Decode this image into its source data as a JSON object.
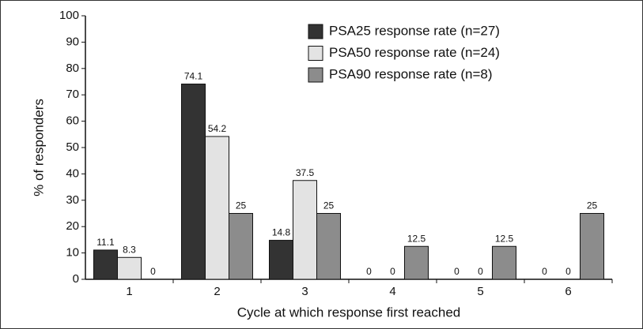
{
  "chart_data": {
    "type": "bar",
    "x_label": "Cycle at which response first reached",
    "y_label": "% of responders",
    "categories": [
      "1",
      "2",
      "3",
      "4",
      "5",
      "6"
    ],
    "series": [
      {
        "name": "PSA25 response rate (n=27)",
        "color": "#333333",
        "values": [
          11.1,
          74.1,
          14.8,
          0,
          0,
          0
        ]
      },
      {
        "name": "PSA50 response rate (n=24)",
        "color": "#e3e3e3",
        "values": [
          8.3,
          54.2,
          37.5,
          0,
          0,
          0
        ]
      },
      {
        "name": "PSA90 response rate (n=8)",
        "color": "#8c8c8c",
        "values": [
          0,
          25,
          25,
          12.5,
          12.5,
          25
        ]
      }
    ],
    "ylim": [
      0,
      100
    ],
    "yticks": [
      0,
      10,
      20,
      30,
      40,
      50,
      60,
      70,
      80,
      90,
      100
    ],
    "legend": "top-right"
  }
}
